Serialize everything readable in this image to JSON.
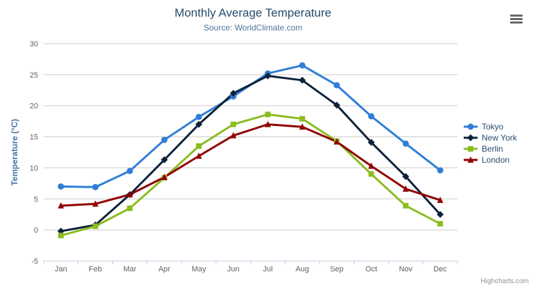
{
  "header": {
    "title": "Monthly Average Temperature",
    "subtitle": "Source: WorldClimate.com"
  },
  "menu_icon": "hamburger-menu-icon",
  "credits": "Highcharts.com",
  "colors": {
    "title": "#274b6d",
    "subtitle": "#4d759e",
    "axis_title": "#4572a7",
    "tick_label": "#606060",
    "gridline": "#cccccc",
    "axis_line": "#c0d0e0",
    "legend_text": "#274b6d"
  },
  "chart_data": {
    "type": "line",
    "title": "Monthly Average Temperature",
    "subtitle": "Source: WorldClimate.com",
    "categories": [
      "Jan",
      "Feb",
      "Mar",
      "Apr",
      "May",
      "Jun",
      "Jul",
      "Aug",
      "Sep",
      "Oct",
      "Nov",
      "Dec"
    ],
    "xlabel": "",
    "ylabel": "Temperature (°C)",
    "ylim": [
      -5,
      30
    ],
    "ytick_step": 5,
    "grid": "horizontal",
    "legend_position": "right",
    "series": [
      {
        "name": "Tokyo",
        "color": "#2f7ed8",
        "marker": "circle",
        "values": [
          7.0,
          6.9,
          9.5,
          14.5,
          18.2,
          21.5,
          25.2,
          26.5,
          23.3,
          18.3,
          13.9,
          9.6
        ]
      },
      {
        "name": "New York",
        "color": "#0d233a",
        "marker": "diamond",
        "values": [
          -0.2,
          0.8,
          5.7,
          11.3,
          17.0,
          22.0,
          24.8,
          24.1,
          20.1,
          14.1,
          8.6,
          2.5
        ]
      },
      {
        "name": "Berlin",
        "color": "#8bbc21",
        "marker": "square",
        "values": [
          -0.9,
          0.6,
          3.5,
          8.4,
          13.5,
          17.0,
          18.6,
          17.9,
          14.3,
          9.0,
          3.9,
          1.0
        ]
      },
      {
        "name": "London",
        "color": "#910000",
        "marker": "triangle",
        "values": [
          3.9,
          4.2,
          5.7,
          8.5,
          11.9,
          15.2,
          17.0,
          16.6,
          14.2,
          10.3,
          6.6,
          4.8
        ]
      }
    ]
  }
}
